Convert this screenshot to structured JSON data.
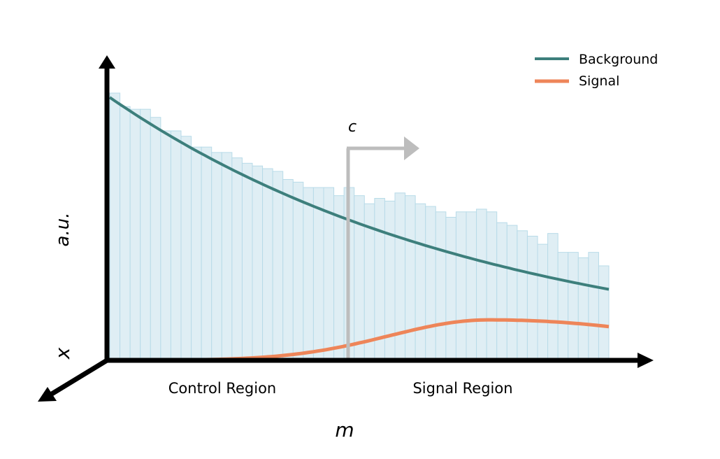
{
  "axes": {
    "y_label": "a.u.",
    "x_label": "m",
    "z_label": "x"
  },
  "regions": {
    "control": "Control Region",
    "signal": "Signal Region"
  },
  "cut": {
    "label": "c",
    "position": 0.5,
    "color": "#bdbdbd"
  },
  "legend": [
    {
      "name": "Background",
      "color": "#3d7f7c"
    },
    {
      "name": "Signal",
      "color": "#ee8559"
    }
  ],
  "histogram": {
    "fill": "#dfeef4",
    "edge": "#b8dbe8",
    "values": [
      0.99,
      0.94,
      0.93,
      0.93,
      0.9,
      0.85,
      0.85,
      0.83,
      0.79,
      0.79,
      0.77,
      0.77,
      0.75,
      0.73,
      0.72,
      0.71,
      0.7,
      0.67,
      0.66,
      0.64,
      0.64,
      0.64,
      0.61,
      0.64,
      0.61,
      0.58,
      0.6,
      0.59,
      0.62,
      0.61,
      0.58,
      0.57,
      0.55,
      0.53,
      0.55,
      0.55,
      0.56,
      0.55,
      0.51,
      0.5,
      0.48,
      0.46,
      0.43,
      0.47,
      0.4,
      0.4,
      0.38,
      0.4,
      0.35
    ]
  },
  "background_curve": {
    "start": 0.974,
    "end": 0.263
  },
  "signal_curve": {
    "peak_position": 0.76,
    "peak_height": 0.15,
    "width": 0.2,
    "end": 0.125
  }
}
